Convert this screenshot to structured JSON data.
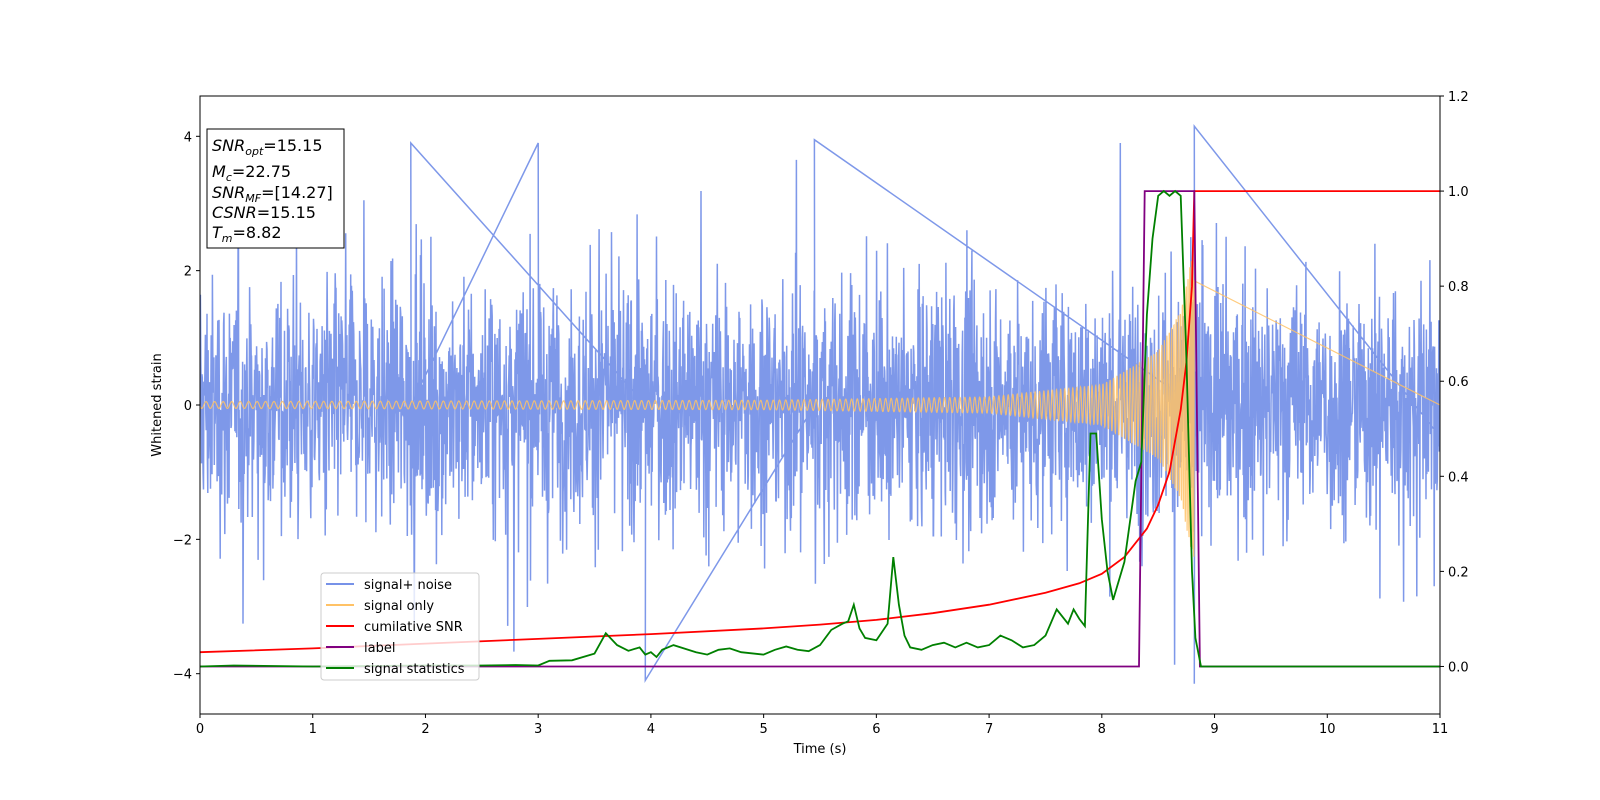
{
  "chart_data": {
    "type": "line",
    "xlabel": "Time (s)",
    "ylabel": "Whitened strain",
    "xlim": [
      0,
      11
    ],
    "ylim": [
      -4.6,
      4.6
    ],
    "y2lim": [
      -0.1,
      1.2
    ],
    "xticks": [
      "0",
      "1",
      "2",
      "3",
      "4",
      "5",
      "6",
      "7",
      "8",
      "9",
      "10",
      "11"
    ],
    "yticks": [
      "−4",
      "−2",
      "0",
      "2",
      "4"
    ],
    "y2ticks": [
      "0.0",
      "0.2",
      "0.4",
      "0.6",
      "0.8",
      "1.0",
      "1.2"
    ],
    "grid": false,
    "legend_position": "lower-left",
    "colors": {
      "signal_noise": "#7792e8",
      "signal_only": "#ffc266",
      "cumulative_snr": "#ff0000",
      "label": "#800080",
      "signal_statistics": "#008000"
    },
    "info_box": {
      "snr_opt": {
        "base": "SNR",
        "sub": "opt",
        "value": "=15.15"
      },
      "mc": {
        "base": "M",
        "sub": "c",
        "value": "=22.75"
      },
      "snr_mf": {
        "base": "SNR",
        "sub": "MF",
        "value": "=[14.27]"
      },
      "csnr": {
        "base": "CSNR",
        "value": "=15.15"
      },
      "tm": {
        "base": "T",
        "sub": "m",
        "value": "=8.82"
      }
    },
    "series": [
      {
        "name": "signal+ noise",
        "axis": "left",
        "kind": "noise",
        "x_range": [
          0,
          11
        ],
        "typical_amplitude": 1.8,
        "peak_values": [
          {
            "x": 8.82,
            "y": 4.15
          },
          {
            "x": 8.82,
            "y": -4.15
          },
          {
            "x": 5.45,
            "y": 3.95
          },
          {
            "x": 3.95,
            "y": -4.1
          },
          {
            "x": 1.87,
            "y": 3.9
          },
          {
            "x": 3.0,
            "y": 3.9
          }
        ]
      },
      {
        "name": "signal only",
        "axis": "left",
        "kind": "chirp",
        "x_range": [
          0,
          8.82
        ],
        "amplitude_points": [
          [
            0,
            0.05
          ],
          [
            5,
            0.07
          ],
          [
            7,
            0.12
          ],
          [
            8,
            0.3
          ],
          [
            8.5,
            0.8
          ],
          [
            8.7,
            1.4
          ],
          [
            8.82,
            2.4
          ]
        ]
      },
      {
        "name": "cumilative SNR",
        "axis": "right",
        "x": [
          0,
          1,
          2,
          3,
          4,
          5,
          5.5,
          6,
          6.5,
          7,
          7.5,
          7.8,
          8.0,
          8.2,
          8.4,
          8.5,
          8.6,
          8.7,
          8.75,
          8.8,
          8.82,
          8.85,
          11
        ],
        "values": [
          0.03,
          0.038,
          0.048,
          0.058,
          0.068,
          0.08,
          0.088,
          0.098,
          0.112,
          0.13,
          0.155,
          0.175,
          0.195,
          0.23,
          0.29,
          0.34,
          0.41,
          0.54,
          0.64,
          0.8,
          1.0,
          1.0,
          1.0
        ]
      },
      {
        "name": "label",
        "axis": "right",
        "x": [
          0,
          8.33,
          8.38,
          8.82,
          8.87,
          11
        ],
        "values": [
          0,
          0,
          1,
          1,
          0,
          0
        ]
      },
      {
        "name": "signal statistics",
        "axis": "right",
        "x": [
          0,
          0.3,
          1,
          2,
          2.5,
          2.8,
          3.0,
          3.1,
          3.3,
          3.5,
          3.6,
          3.7,
          3.8,
          3.9,
          3.95,
          4.0,
          4.05,
          4.1,
          4.2,
          4.4,
          4.5,
          4.6,
          4.7,
          4.8,
          5.0,
          5.1,
          5.2,
          5.3,
          5.4,
          5.5,
          5.6,
          5.7,
          5.75,
          5.8,
          5.85,
          5.9,
          6.0,
          6.1,
          6.15,
          6.2,
          6.25,
          6.3,
          6.4,
          6.5,
          6.6,
          6.7,
          6.8,
          6.9,
          7.0,
          7.1,
          7.2,
          7.3,
          7.4,
          7.5,
          7.6,
          7.7,
          7.75,
          7.8,
          7.85,
          7.9,
          7.95,
          8.0,
          8.05,
          8.1,
          8.2,
          8.3,
          8.35,
          8.4,
          8.45,
          8.5,
          8.55,
          8.6,
          8.65,
          8.7,
          8.75,
          8.8,
          8.83,
          8.88,
          8.9,
          9.0,
          11
        ],
        "values": [
          0,
          0.002,
          0,
          0.002,
          0.002,
          0.003,
          0.002,
          0.012,
          0.013,
          0.027,
          0.07,
          0.045,
          0.033,
          0.04,
          0.025,
          0.03,
          0.02,
          0.035,
          0.045,
          0.03,
          0.025,
          0.035,
          0.038,
          0.03,
          0.025,
          0.035,
          0.042,
          0.035,
          0.032,
          0.045,
          0.077,
          0.09,
          0.095,
          0.13,
          0.08,
          0.06,
          0.055,
          0.09,
          0.23,
          0.13,
          0.065,
          0.04,
          0.035,
          0.045,
          0.05,
          0.04,
          0.05,
          0.04,
          0.045,
          0.065,
          0.055,
          0.04,
          0.045,
          0.065,
          0.12,
          0.09,
          0.12,
          0.1,
          0.085,
          0.49,
          0.49,
          0.31,
          0.2,
          0.14,
          0.22,
          0.39,
          0.43,
          0.74,
          0.9,
          0.99,
          1.0,
          0.99,
          1.0,
          0.99,
          0.65,
          0.2,
          0.06,
          0,
          0,
          0,
          0
        ]
      }
    ]
  }
}
